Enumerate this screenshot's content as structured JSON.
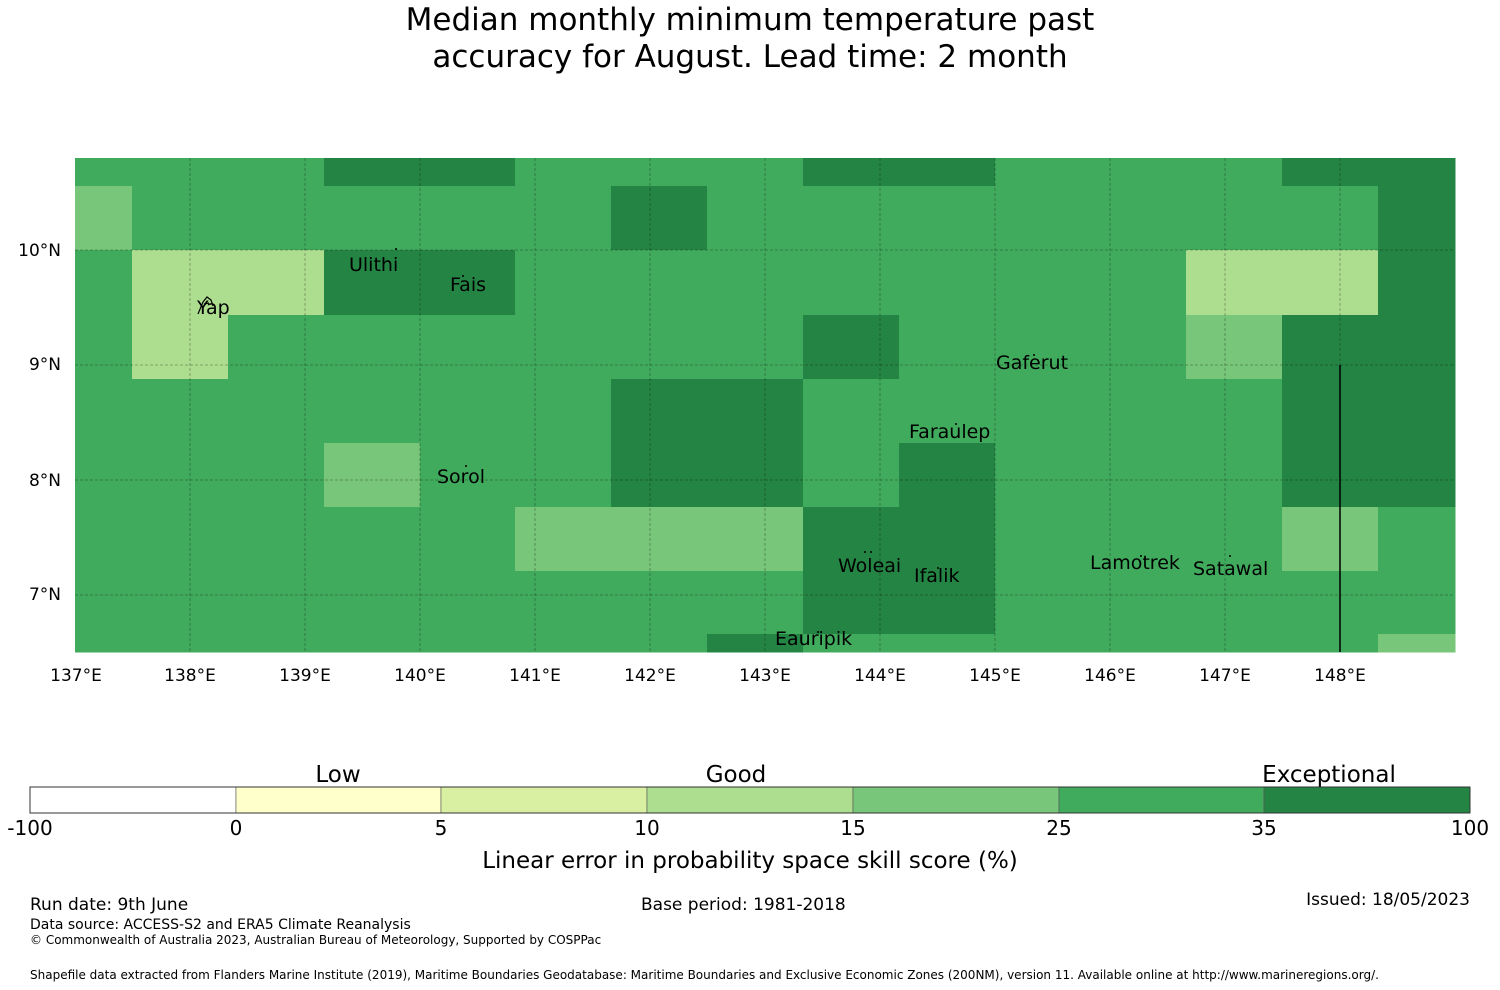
{
  "title": {
    "line1": "Median monthly minimum temperature past",
    "line2": "accuracy for August. Lead time: 2 month"
  },
  "map": {
    "lat_labels": [
      "10°N",
      "9°N",
      "8°N",
      "7°N"
    ],
    "lon_labels": [
      "137°E",
      "138°E",
      "139°E",
      "140°E",
      "141°E",
      "142°E",
      "143°E",
      "144°E",
      "145°E",
      "146°E",
      "147°E",
      "148°E"
    ],
    "places": [
      "Ulithi",
      "Yap",
      "Fais",
      "Gaferut",
      "Faraulep",
      "Sorol",
      "Woleai",
      "Ifalik",
      "Lamotrek",
      "Satawal",
      "Eauripik"
    ],
    "grid_colors": {
      "1": "#78c679",
      "2": "#41ab5d",
      "3": "#238443",
      "4": "#addd8e"
    }
  },
  "colorbar": {
    "category_labels": [
      "Low",
      "Good",
      "Exceptional"
    ],
    "ticks": [
      "-100",
      "0",
      "5",
      "10",
      "15",
      "25",
      "35",
      "100"
    ],
    "colors": [
      "#ffffff",
      "#ffffcc",
      "#d9f0a3",
      "#addd8e",
      "#78c679",
      "#41ab5d",
      "#238443"
    ],
    "label": "Linear error in probability space skill score (%)"
  },
  "footer": {
    "run_date": "Run date: 9th June",
    "base_period": "Base period: 1981-2018",
    "issued": "Issued: 18/05/2023",
    "data_source": "Data source: ACCESS-S2 and ERA5 Climate Reanalysis",
    "copyright": "© Commonwealth of Australia 2023, Australian Bureau of Meteorology, Supported by COSPPac",
    "shapefile": "Shapefile data extracted from Flanders Marine Institute (2019), Maritime Boundaries Geodatabase: Maritime Boundaries and Exclusive Economic Zones (200NM), version 11. Available online at http://www.marineregions.org/."
  }
}
